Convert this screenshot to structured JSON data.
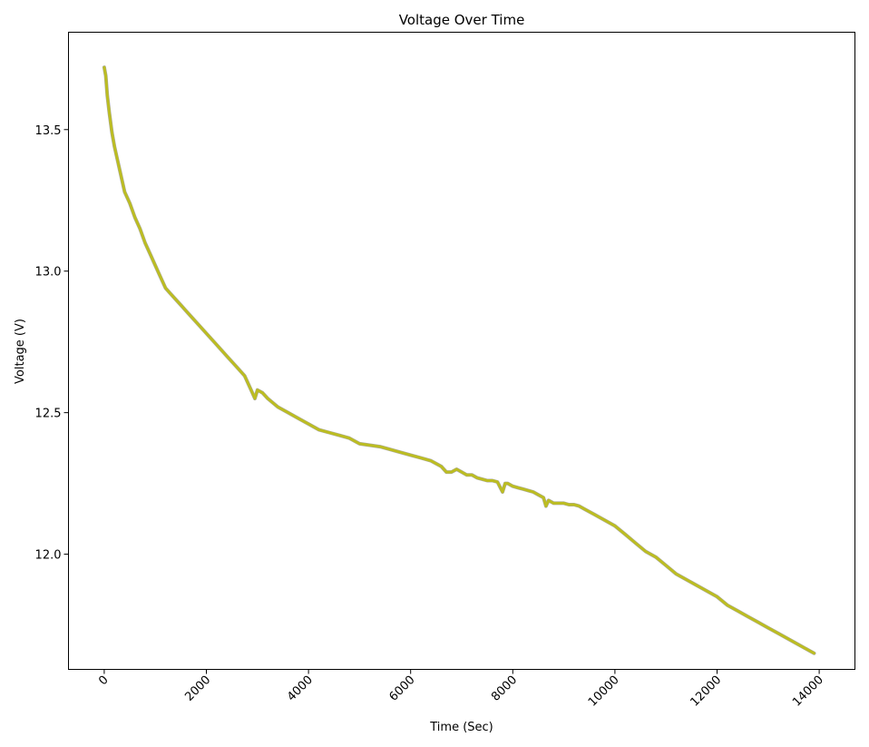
{
  "chart_data": {
    "type": "line",
    "title": "Voltage Over Time",
    "xlabel": "Time (Sec)",
    "ylabel": "Voltage (V)",
    "xlim": [
      -700,
      14700
    ],
    "ylim": [
      11.593,
      13.844
    ],
    "xticks": [
      0,
      2000,
      4000,
      6000,
      8000,
      10000,
      12000,
      14000
    ],
    "xtick_labels": [
      "0",
      "2000",
      "4000",
      "6000",
      "8000",
      "10000",
      "12000",
      "14000"
    ],
    "yticks": [
      12.0,
      12.5,
      13.0,
      13.5
    ],
    "ytick_labels": [
      "12.0",
      "12.5",
      "13.0",
      "13.5"
    ],
    "grid": false,
    "legend": "none",
    "series": [
      {
        "color": "#bcbd22",
        "x": [
          0,
          30,
          60,
          100,
          150,
          200,
          250,
          300,
          350,
          400,
          450,
          500,
          600,
          700,
          800,
          900,
          1000,
          1100,
          1200,
          1300,
          1400,
          1500,
          1600,
          1700,
          1800,
          2000,
          2200,
          2400,
          2600,
          2750,
          2850,
          2950,
          3000,
          3100,
          3200,
          3400,
          3600,
          3800,
          4000,
          4200,
          4400,
          4600,
          4800,
          5000,
          5200,
          5400,
          5600,
          5800,
          6000,
          6200,
          6400,
          6600,
          6700,
          6800,
          6900,
          7000,
          7100,
          7200,
          7300,
          7400,
          7500,
          7600,
          7700,
          7800,
          7850,
          7900,
          8000,
          8100,
          8200,
          8300,
          8400,
          8500,
          8600,
          8650,
          8700,
          8800,
          8900,
          9000,
          9100,
          9200,
          9300,
          9400,
          9600,
          9800,
          10000,
          10200,
          10400,
          10600,
          10800,
          11000,
          11200,
          11400,
          11600,
          11800,
          12000,
          12200,
          12400,
          12600,
          12800,
          13000,
          13200,
          13400,
          13600,
          13800,
          13900
        ],
        "y": [
          13.72,
          13.69,
          13.62,
          13.56,
          13.49,
          13.44,
          13.4,
          13.36,
          13.32,
          13.28,
          13.26,
          13.24,
          13.19,
          13.15,
          13.1,
          13.06,
          13.02,
          12.98,
          12.94,
          12.92,
          12.9,
          12.88,
          12.86,
          12.84,
          12.82,
          12.78,
          12.74,
          12.7,
          12.66,
          12.63,
          12.59,
          12.55,
          12.58,
          12.57,
          12.55,
          12.52,
          12.5,
          12.48,
          12.46,
          12.44,
          12.43,
          12.42,
          12.41,
          12.39,
          12.385,
          12.38,
          12.37,
          12.36,
          12.35,
          12.34,
          12.33,
          12.31,
          12.29,
          12.29,
          12.3,
          12.29,
          12.28,
          12.28,
          12.27,
          12.265,
          12.26,
          12.26,
          12.255,
          12.22,
          12.25,
          12.25,
          12.24,
          12.235,
          12.23,
          12.225,
          12.22,
          12.21,
          12.2,
          12.17,
          12.19,
          12.18,
          12.18,
          12.18,
          12.175,
          12.175,
          12.17,
          12.16,
          12.14,
          12.12,
          12.1,
          12.07,
          12.04,
          12.01,
          11.99,
          11.96,
          11.93,
          11.91,
          11.89,
          11.87,
          11.85,
          11.82,
          11.8,
          11.78,
          11.76,
          11.74,
          11.72,
          11.7,
          11.68,
          11.66,
          11.65
        ]
      }
    ]
  }
}
